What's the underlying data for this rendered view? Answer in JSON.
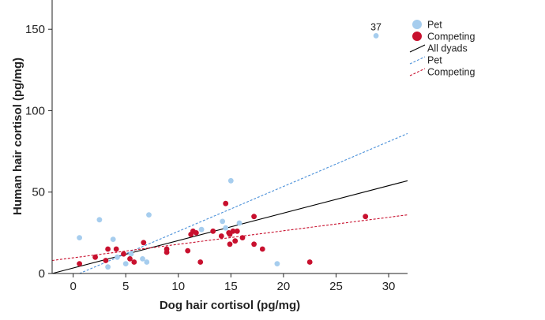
{
  "chart_data": {
    "type": "scatter",
    "xlabel": "Dog hair cortisol (pg/mg)",
    "ylabel": "Human hair cortisol (pg/mg)",
    "xlim": [
      -2,
      31.8
    ],
    "ylim": [
      0,
      168
    ],
    "xticks": [
      0,
      5,
      10,
      15,
      20,
      25,
      30
    ],
    "yticks": [
      0,
      50,
      100,
      150
    ],
    "grid": false,
    "legend_position": "top-right",
    "series": [
      {
        "name": "Pet",
        "color": "#a6cdee",
        "points": [
          {
            "x": 0.6,
            "y": 22
          },
          {
            "x": 2.5,
            "y": 33
          },
          {
            "x": 3.3,
            "y": 4
          },
          {
            "x": 3.8,
            "y": 21
          },
          {
            "x": 4.2,
            "y": 10
          },
          {
            "x": 5.0,
            "y": 6
          },
          {
            "x": 5.5,
            "y": 12
          },
          {
            "x": 6.6,
            "y": 9
          },
          {
            "x": 7.0,
            "y": 7
          },
          {
            "x": 7.2,
            "y": 36
          },
          {
            "x": 12.2,
            "y": 27
          },
          {
            "x": 14.2,
            "y": 32
          },
          {
            "x": 14.5,
            "y": 28
          },
          {
            "x": 15.0,
            "y": 57
          },
          {
            "x": 15.8,
            "y": 31
          },
          {
            "x": 19.4,
            "y": 6
          },
          {
            "x": 28.8,
            "y": 146
          }
        ]
      },
      {
        "name": "Competing",
        "color": "#c8102e",
        "points": [
          {
            "x": 0.6,
            "y": 6
          },
          {
            "x": 2.1,
            "y": 10
          },
          {
            "x": 3.1,
            "y": 8
          },
          {
            "x": 3.3,
            "y": 15
          },
          {
            "x": 4.1,
            "y": 15
          },
          {
            "x": 4.8,
            "y": 12
          },
          {
            "x": 5.4,
            "y": 9
          },
          {
            "x": 5.8,
            "y": 7
          },
          {
            "x": 6.7,
            "y": 19
          },
          {
            "x": 8.9,
            "y": 15
          },
          {
            "x": 8.9,
            "y": 13
          },
          {
            "x": 10.9,
            "y": 14
          },
          {
            "x": 11.2,
            "y": 24
          },
          {
            "x": 11.4,
            "y": 26
          },
          {
            "x": 11.7,
            "y": 25
          },
          {
            "x": 12.1,
            "y": 7
          },
          {
            "x": 13.3,
            "y": 26
          },
          {
            "x": 14.1,
            "y": 23
          },
          {
            "x": 14.5,
            "y": 43
          },
          {
            "x": 14.8,
            "y": 25
          },
          {
            "x": 14.9,
            "y": 24
          },
          {
            "x": 14.9,
            "y": 18
          },
          {
            "x": 15.2,
            "y": 26
          },
          {
            "x": 15.4,
            "y": 20
          },
          {
            "x": 15.6,
            "y": 26
          },
          {
            "x": 16.1,
            "y": 22
          },
          {
            "x": 17.2,
            "y": 35
          },
          {
            "x": 17.2,
            "y": 18
          },
          {
            "x": 18.0,
            "y": 15
          },
          {
            "x": 22.5,
            "y": 7
          },
          {
            "x": 27.8,
            "y": 35
          }
        ]
      }
    ],
    "fit_lines": [
      {
        "name": "All dyads",
        "color": "#000000",
        "style": "solid",
        "x": [
          -2,
          31.8
        ],
        "y": [
          0,
          57
        ]
      },
      {
        "name": "Pet",
        "color": "#4a90d9",
        "style": "dashed",
        "x": [
          0.6,
          31.8
        ],
        "y": [
          0,
          86
        ]
      },
      {
        "name": "Competing",
        "color": "#c8102e",
        "style": "dashed",
        "x": [
          -2,
          31.8
        ],
        "y": [
          8,
          36
        ]
      }
    ],
    "annotations": [
      {
        "text": "37",
        "x": 28.8,
        "y": 146
      }
    ]
  },
  "legend": {
    "items": [
      {
        "label": "Pet",
        "kind": "marker",
        "color": "#a6cdee"
      },
      {
        "label": "Competing",
        "kind": "marker",
        "color": "#c8102e"
      },
      {
        "label": "All dyads",
        "kind": "line",
        "color": "#000000",
        "style": "solid"
      },
      {
        "label": "Pet",
        "kind": "line",
        "color": "#4a90d9",
        "style": "dashed"
      },
      {
        "label": "Competing",
        "kind": "line",
        "color": "#c8102e",
        "style": "dashed"
      }
    ]
  }
}
